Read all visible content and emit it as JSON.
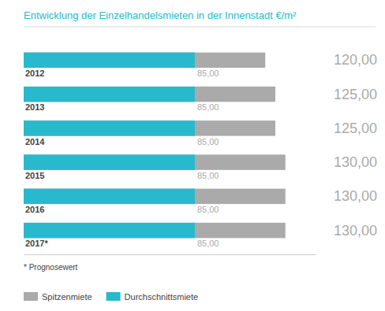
{
  "chart_data": {
    "type": "bar",
    "orientation": "horizontal",
    "stacked": false,
    "title": "Entwicklung der Einzelhandelsmieten in der Innenstadt €/m²",
    "categories": [
      "2012",
      "2013",
      "2014",
      "2015",
      "2016",
      "2017*"
    ],
    "series": [
      {
        "name": "Spitzenmiete",
        "color": "#aaaaaa",
        "values": [
          120,
          125,
          125,
          130,
          130,
          130
        ],
        "value_labels": [
          "120,00",
          "125,00",
          "125,00",
          "130,00",
          "130,00",
          "130,00"
        ]
      },
      {
        "name": "Durchschnittsmiete",
        "color": "#29b9cc",
        "values": [
          85,
          85,
          85,
          85,
          85,
          85
        ],
        "value_labels": [
          "85,00",
          "85,00",
          "85,00",
          "85,00",
          "85,00",
          "85,00"
        ]
      }
    ],
    "xlim": [
      0,
      145
    ],
    "data_labels": true,
    "tick_labels": false,
    "grid": false,
    "legend": "bottom",
    "annotations": [
      "* Prognosewert"
    ]
  }
}
